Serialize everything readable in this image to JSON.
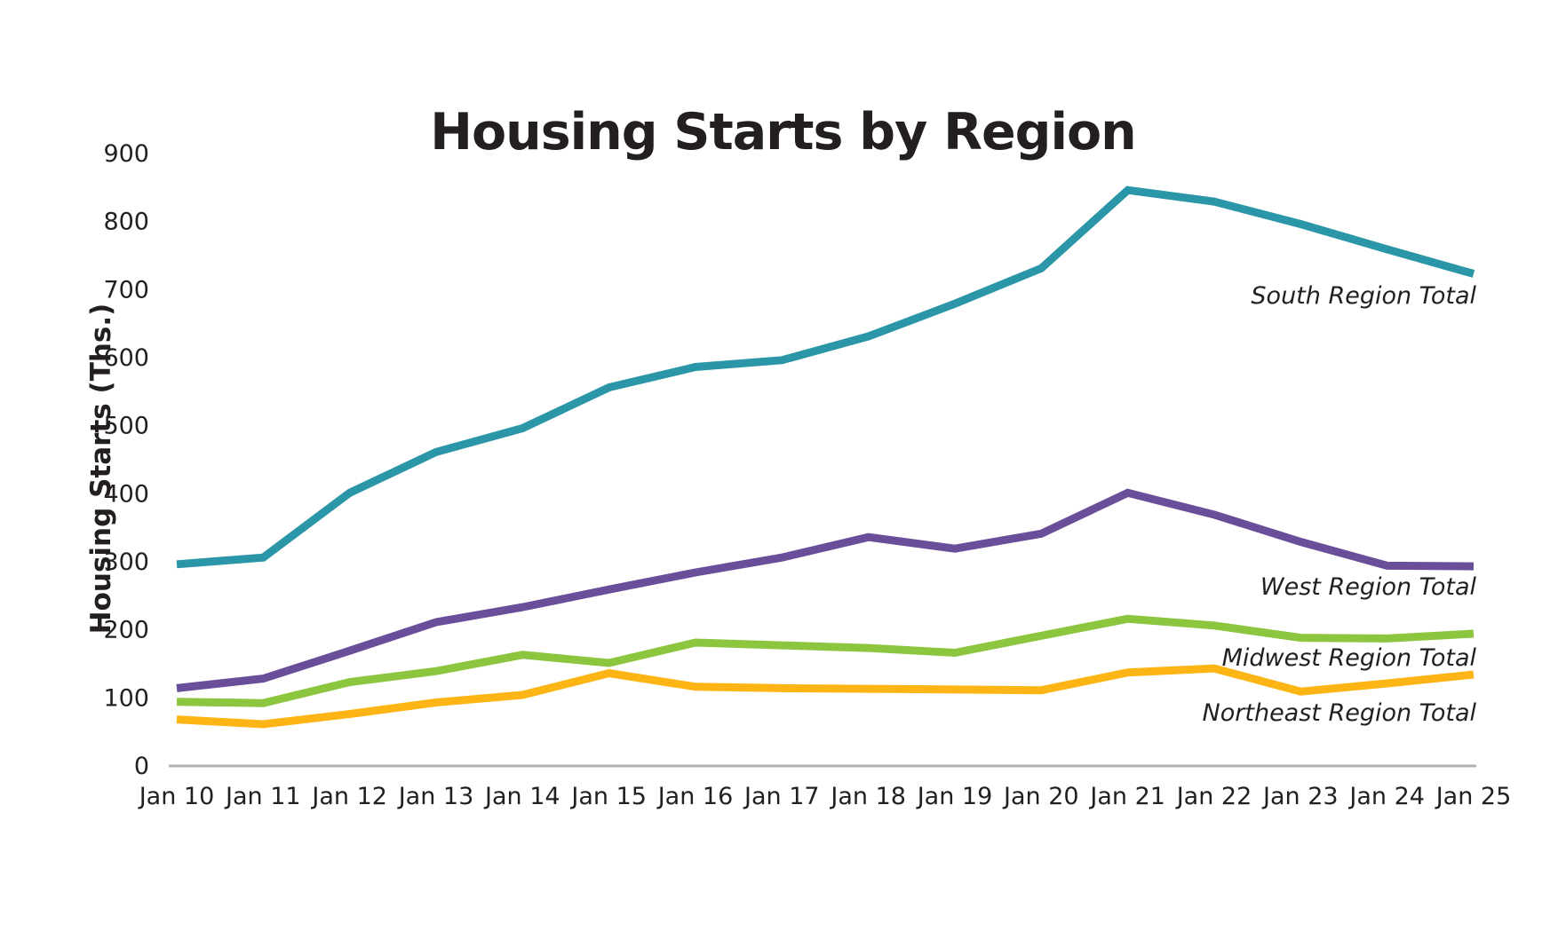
{
  "chart_data": {
    "type": "line",
    "title": "Housing Starts by Region",
    "ylabel": "Housing Starts (Ths.)",
    "xlabel": "",
    "categories": [
      "Jan 10",
      "Jan 11",
      "Jan 12",
      "Jan 13",
      "Jan 14",
      "Jan 15",
      "Jan 16",
      "Jan 17",
      "Jan 18",
      "Jan 19",
      "Jan 20",
      "Jan 21",
      "Jan 22",
      "Jan 23",
      "Jan 24",
      "Jan 25"
    ],
    "y_ticks": [
      0,
      100,
      200,
      300,
      400,
      500,
      600,
      700,
      800,
      900
    ],
    "ylim": [
      0,
      900
    ],
    "grid": false,
    "legend_position": "inline-right-of-plot",
    "axis_color": "#b0b0b0",
    "text_color": "#231f20",
    "series": [
      {
        "name": "South Region Total",
        "color": "#2a96a8",
        "values": [
          295,
          305,
          400,
          460,
          495,
          555,
          585,
          595,
          630,
          678,
          730,
          845,
          828,
          795,
          758,
          722
        ]
      },
      {
        "name": "West Region Total",
        "color": "#6a4e9a",
        "values": [
          113,
          127,
          168,
          210,
          232,
          258,
          283,
          305,
          335,
          318,
          340,
          400,
          368,
          328,
          293,
          292
        ]
      },
      {
        "name": "Midwest Region Total",
        "color": "#8cc63f",
        "values": [
          93,
          91,
          122,
          138,
          162,
          150,
          180,
          176,
          172,
          165,
          190,
          215,
          205,
          187,
          186,
          193
        ]
      },
      {
        "name": "Northeast Region Total",
        "color": "#fdb515",
        "values": [
          67,
          60,
          75,
          92,
          103,
          135,
          115,
          113,
          112,
          111,
          110,
          136,
          142,
          108,
          120,
          133
        ]
      }
    ]
  }
}
